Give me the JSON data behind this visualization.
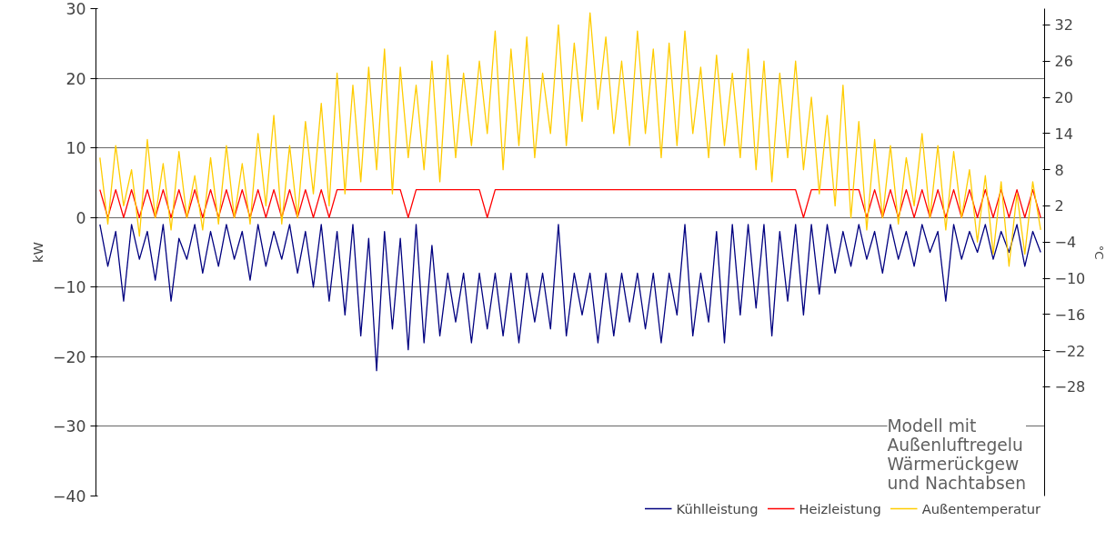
{
  "chart_data": {
    "type": "line",
    "ylabel": "kW",
    "y2label": "°C",
    "ylim": [
      -40,
      30
    ],
    "yticks": [
      -40,
      -30,
      -20,
      -10,
      0,
      10,
      20,
      30
    ],
    "y2lim": [
      -46.1,
      34.7
    ],
    "y2ticks": [
      -28,
      -22,
      -16,
      -10,
      -4,
      2,
      8,
      14,
      20,
      26,
      32
    ],
    "grid": "y",
    "legend": "bottom",
    "annotations": [
      "Modell mit\nAußenluftregelu\nWärmerückgew\nund Nachtabsen"
    ],
    "categories": [
      null,
      null,
      null,
      null,
      null,
      null,
      null,
      null,
      null,
      null,
      null,
      null,
      null,
      null,
      null,
      null,
      null,
      null,
      null,
      null,
      null,
      null,
      null,
      null,
      null,
      null,
      null,
      null,
      null,
      null,
      null,
      null,
      null,
      null,
      null,
      null,
      null,
      null,
      null,
      null,
      null,
      null,
      null,
      null,
      null,
      null,
      null,
      null,
      null,
      null,
      null,
      null,
      null,
      null,
      null,
      null,
      null,
      null,
      null,
      null,
      null,
      null,
      null,
      null,
      null,
      null,
      null,
      null,
      null,
      null,
      null,
      null,
      null,
      null,
      null,
      null,
      null,
      null,
      null,
      null,
      null,
      null,
      null,
      null,
      null,
      null,
      null,
      null,
      null,
      null,
      null,
      null,
      null,
      null,
      null,
      null,
      null,
      null,
      null,
      null,
      null,
      null,
      null,
      null,
      null,
      null,
      null,
      null,
      null,
      null,
      null,
      null,
      null,
      null,
      null,
      null,
      null,
      null,
      null,
      null
    ],
    "series": [
      {
        "name": "Kühlleistung",
        "color": "#000080",
        "values": [
          -1,
          -7,
          -2,
          -12,
          -1,
          -6,
          -2,
          -9,
          -1,
          -12,
          -3,
          -6,
          -1,
          -8,
          -2,
          -7,
          -1,
          -6,
          -2,
          -9,
          -1,
          -7,
          -2,
          -6,
          -1,
          -8,
          -2,
          -10,
          -1,
          -12,
          -2,
          -14,
          -1,
          -17,
          -3,
          -22,
          -2,
          -16,
          -3,
          -19,
          -1,
          -18,
          -4,
          -17,
          -8,
          -15,
          -8,
          -18,
          -8,
          -16,
          -8,
          -17,
          -8,
          -18,
          -8,
          -15,
          -8,
          -16,
          -1,
          -17,
          -8,
          -14,
          -8,
          -18,
          -8,
          -17,
          -8,
          -15,
          -8,
          -16,
          -8,
          -18,
          -8,
          -14,
          -1,
          -17,
          -8,
          -15,
          -2,
          -18,
          -1,
          -14,
          -1,
          -13,
          -1,
          -17,
          -2,
          -12,
          -1,
          -14,
          -1,
          -11,
          -1,
          -8,
          -2,
          -7,
          -1,
          -6,
          -2,
          -8,
          -1,
          -6,
          -2,
          -7,
          -1,
          -5,
          -2,
          -12,
          -1,
          -6,
          -2,
          -5,
          -1,
          -6,
          -2,
          -5,
          -1,
          -7,
          -2,
          -5
        ]
      },
      {
        "name": "Heizleistung",
        "color": "#ff0000",
        "values": [
          4,
          0,
          4,
          0,
          4,
          0,
          4,
          0,
          4,
          0,
          4,
          0,
          4,
          0,
          4,
          0,
          4,
          0,
          4,
          0,
          4,
          0,
          4,
          0,
          4,
          0,
          4,
          0,
          4,
          0,
          4,
          4,
          4,
          4,
          4,
          4,
          4,
          4,
          4,
          0,
          4,
          4,
          4,
          4,
          4,
          4,
          4,
          4,
          4,
          0,
          4,
          4,
          4,
          4,
          4,
          4,
          4,
          4,
          4,
          4,
          4,
          4,
          4,
          4,
          4,
          4,
          4,
          4,
          4,
          4,
          4,
          4,
          4,
          4,
          4,
          4,
          4,
          4,
          4,
          4,
          4,
          4,
          4,
          4,
          4,
          4,
          4,
          4,
          4,
          0,
          4,
          4,
          4,
          4,
          4,
          4,
          4,
          0,
          4,
          0,
          4,
          0,
          4,
          0,
          4,
          0,
          4,
          0,
          4,
          0,
          4,
          0,
          4,
          0,
          4,
          0,
          4,
          0,
          4,
          0
        ]
      },
      {
        "name": "Außentemperatur",
        "color": "#ffcc00",
        "axis": "y2",
        "values": [
          10,
          -1,
          12,
          2,
          8,
          -3,
          13,
          0,
          9,
          -2,
          11,
          0,
          7,
          -2,
          10,
          -1,
          12,
          0,
          9,
          -1,
          14,
          2,
          17,
          -1,
          12,
          0,
          16,
          4,
          19,
          2,
          24,
          4,
          22,
          6,
          25,
          8,
          28,
          4,
          25,
          10,
          22,
          8,
          26,
          6,
          27,
          10,
          24,
          12,
          26,
          14,
          31,
          8,
          28,
          12,
          30,
          10,
          24,
          14,
          32,
          12,
          29,
          16,
          34,
          18,
          30,
          14,
          26,
          12,
          31,
          14,
          28,
          10,
          29,
          12,
          31,
          14,
          25,
          10,
          27,
          12,
          24,
          10,
          28,
          8,
          26,
          6,
          24,
          10,
          26,
          8,
          20,
          4,
          17,
          2,
          22,
          0,
          16,
          -2,
          13,
          0,
          12,
          -1,
          10,
          2,
          14,
          0,
          12,
          -2,
          11,
          0,
          8,
          -4,
          7,
          -6,
          6,
          -8,
          4,
          -6,
          6,
          -2
        ]
      }
    ]
  }
}
